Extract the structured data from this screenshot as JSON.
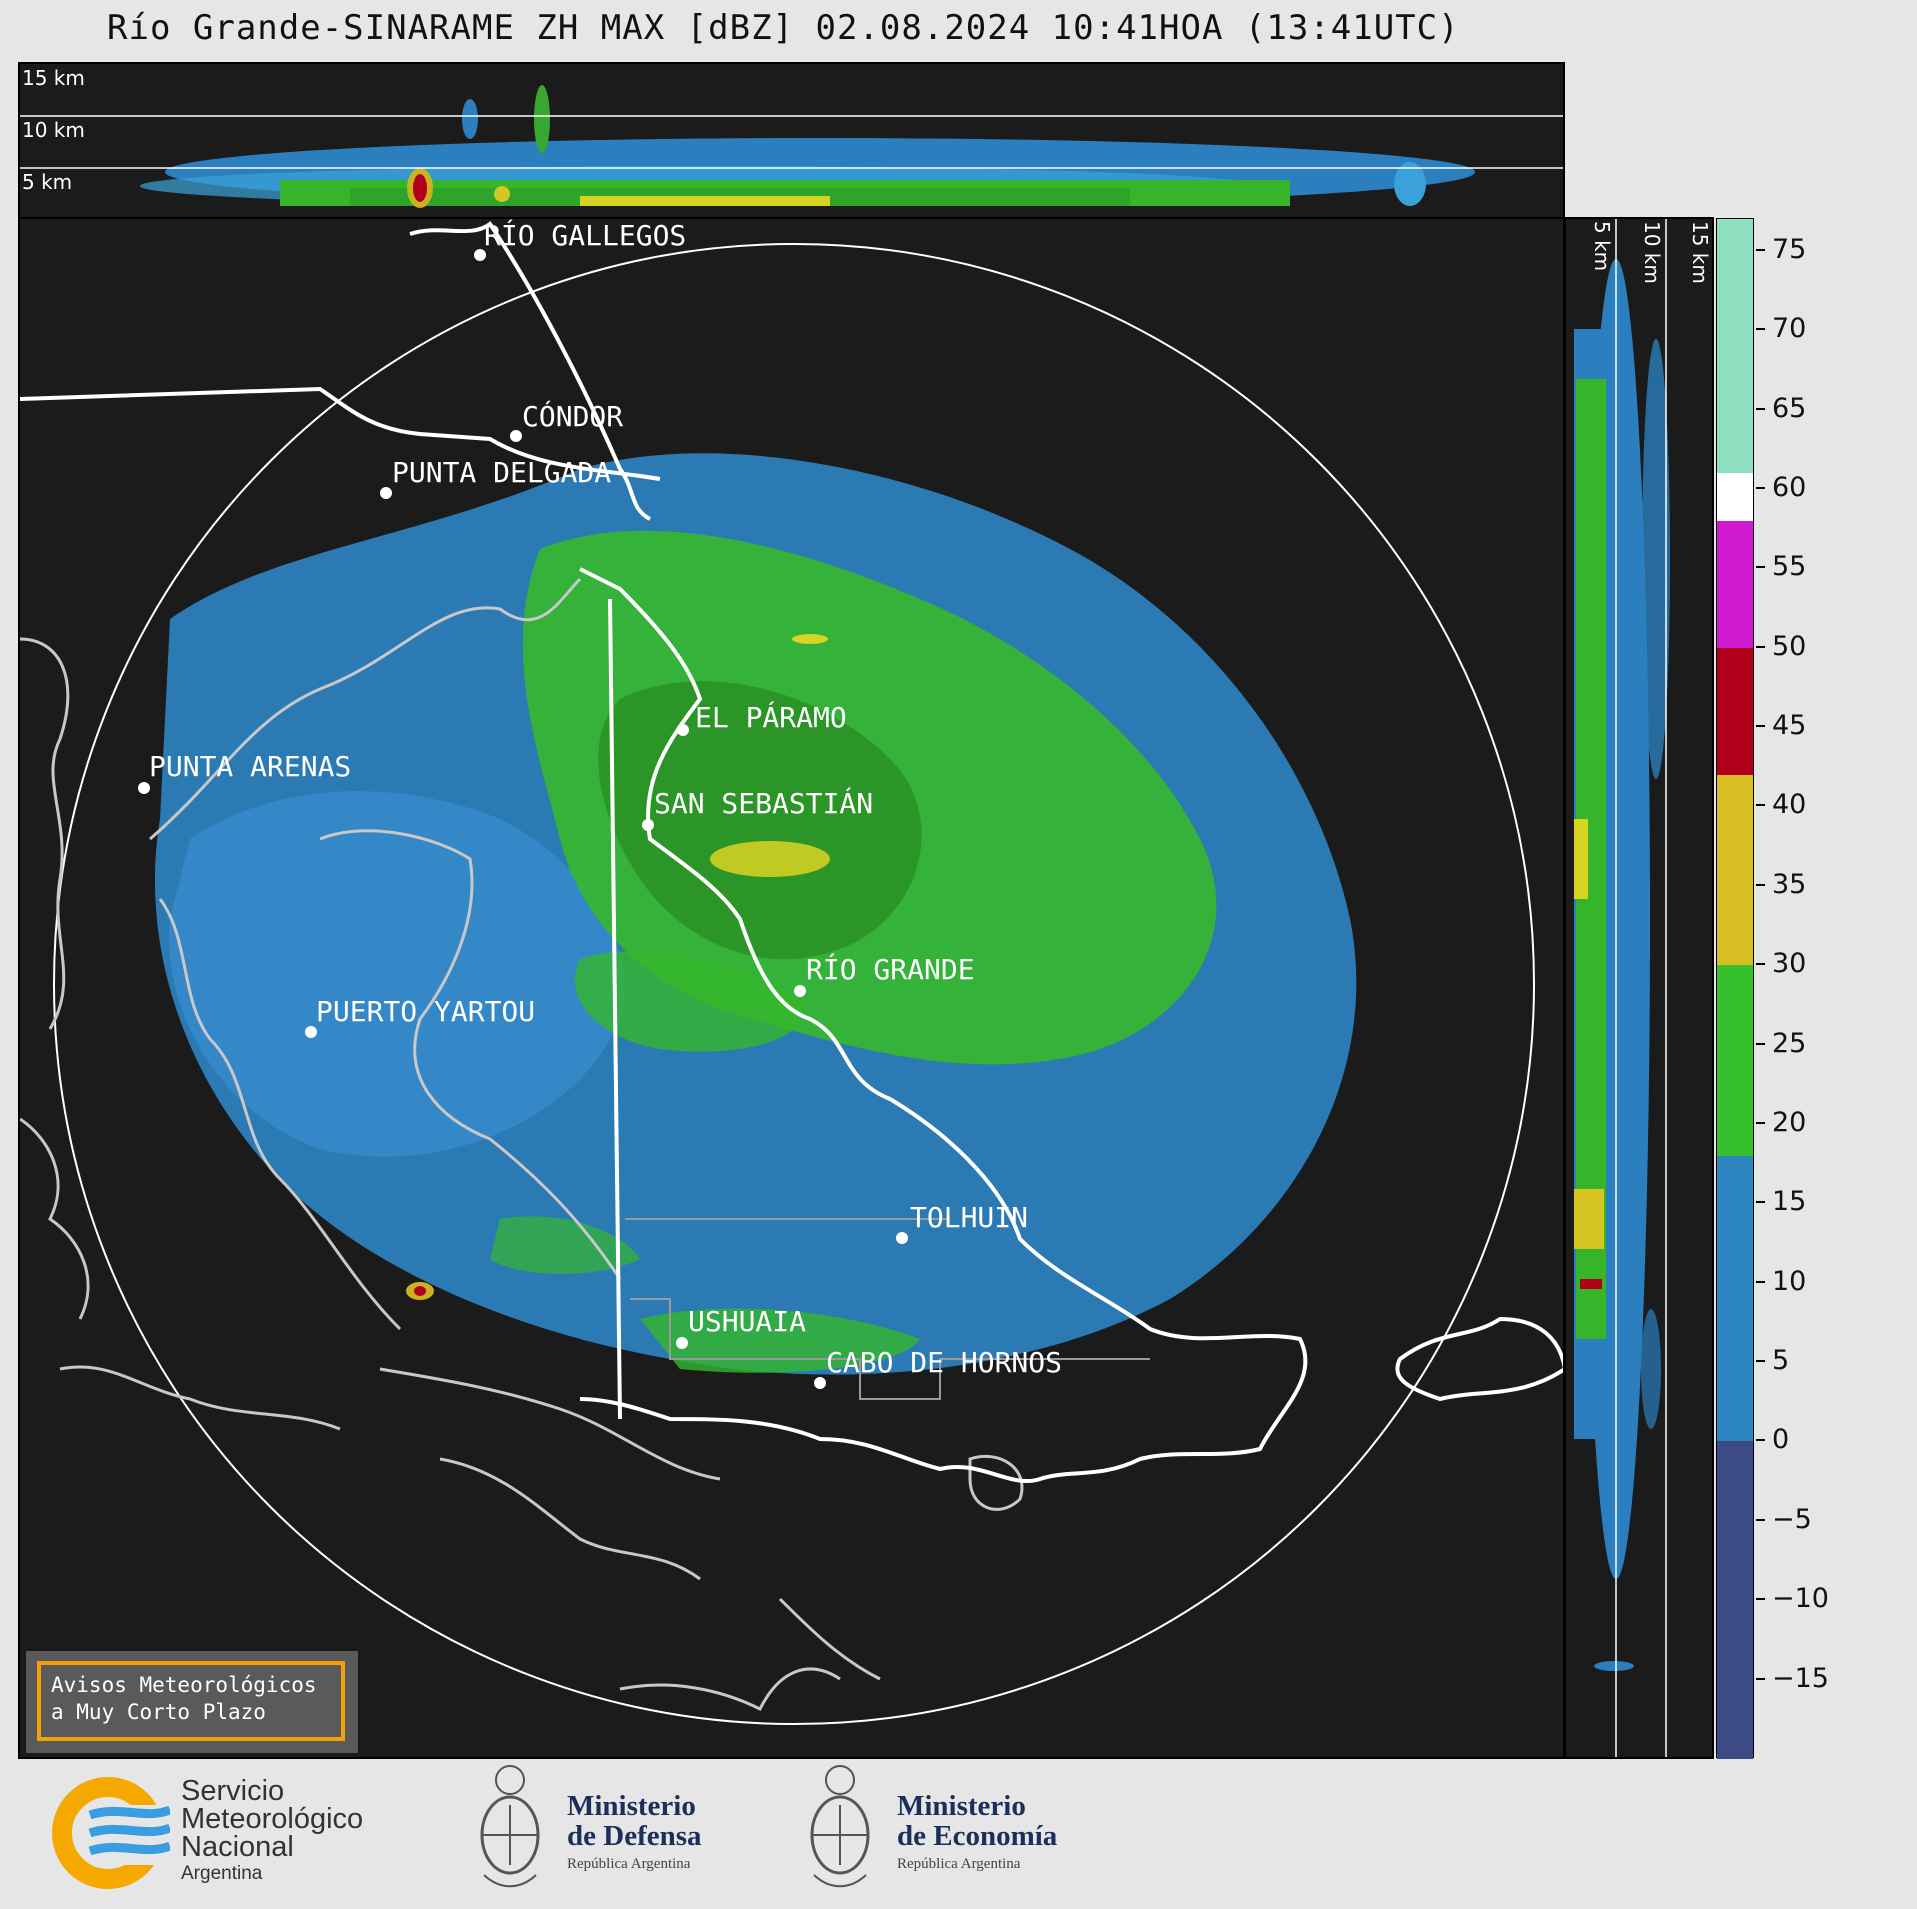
{
  "title": "Río Grande-SINARAME ZH MAX [dBZ] 02.08.2024 10:41HOA (13:41UTC)",
  "top_panel": {
    "altitude_labels": [
      "15 km",
      "10 km",
      "5 km"
    ]
  },
  "side_panel": {
    "altitude_labels": [
      "5 km",
      "10 km",
      "15 km"
    ]
  },
  "cities": [
    {
      "name": "RÍO GALLEGOS"
    },
    {
      "name": "CÓNDOR"
    },
    {
      "name": "PUNTA DELGADA"
    },
    {
      "name": "EL PÁRAMO"
    },
    {
      "name": "PUNTA ARENAS"
    },
    {
      "name": "SAN SEBASTIÁN"
    },
    {
      "name": "RÍO GRANDE"
    },
    {
      "name": "PUERTO YARTOU"
    },
    {
      "name": "TOLHUIN"
    },
    {
      "name": "USHUAIA"
    },
    {
      "name": "CABO DE HORNOS"
    }
  ],
  "colorbar": {
    "unit": "dBZ",
    "min": -20,
    "max": 77,
    "ticks": [
      75,
      70,
      65,
      60,
      55,
      50,
      45,
      40,
      35,
      30,
      25,
      20,
      15,
      10,
      5,
      0,
      -5,
      -10,
      -15
    ],
    "tick_labels": [
      "75",
      "70",
      "65",
      "60",
      "55",
      "50",
      "45",
      "40",
      "35",
      "30",
      "25",
      "20",
      "15",
      "10",
      "5",
      "0",
      "−5",
      "−10",
      "−15"
    ],
    "bands": [
      {
        "from": -20,
        "to": 0,
        "color": "#3c4a85"
      },
      {
        "from": 0,
        "to": 18,
        "color": "#2d86c0"
      },
      {
        "from": 18,
        "to": 30,
        "color": "#37c02e"
      },
      {
        "from": 30,
        "to": 42,
        "color": "#d8c024"
      },
      {
        "from": 42,
        "to": 50,
        "color": "#b0001a"
      },
      {
        "from": 50,
        "to": 58,
        "color": "#d01ad0"
      },
      {
        "from": 58,
        "to": 61,
        "color": "#ffffff"
      },
      {
        "from": 61,
        "to": 77,
        "color": "#8ee0c0"
      }
    ]
  },
  "alert": {
    "line1": "Avisos Meteorológicos",
    "line2": "a Muy Corto Plazo"
  },
  "logos": {
    "smn": {
      "line1": "Servicio",
      "line2": "Meteorológico",
      "line3": "Nacional",
      "line4": "Argentina"
    },
    "defensa": {
      "line1": "Ministerio",
      "line2": "de Defensa",
      "line3": "República Argentina"
    },
    "economia": {
      "line1": "Ministerio",
      "line2": "de Economía",
      "line3": "República Argentina"
    }
  }
}
